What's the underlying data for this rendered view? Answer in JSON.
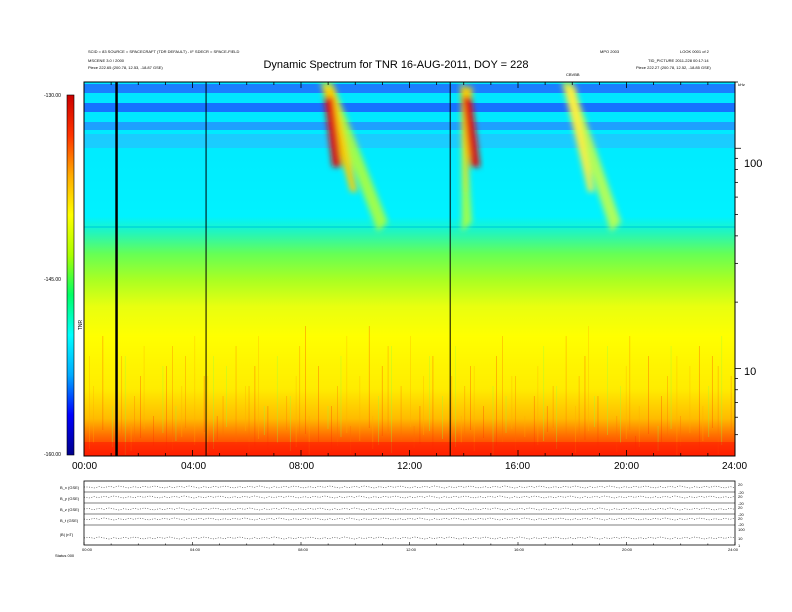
{
  "header": {
    "left_line1": "SCID = 83 SOURCE = SPACECRAFT (TDR DEFAULT)  -  IF SDECR = SPACE-FIELD",
    "left_line2": "MSCENE 3.0 / 2000",
    "left_line3_label": "Piece",
    "left_line3_value": "222.65 (200.78, 12.53, -18.87 GSE)",
    "right_line1_left": "MPO 2003",
    "right_line1_right": "LOOK 0001 of 2",
    "right_line2": "TID_PICTURE  2011-228 00:17:14",
    "right_line3_label": "Piece",
    "right_line3_value": "222.27 (200.78, 12.52, -18.85 GSE)",
    "small_marker": "CBVBB",
    "unit_tag": "kHz"
  },
  "chart_data": {
    "type": "heatmap",
    "title": "Dynamic Spectrum for TNR 16-AUG-2011, DOY = 228",
    "xlabel": "",
    "ylabel": "",
    "x_range_hours": [
      0,
      24
    ],
    "x_tick_labels": [
      "00:00",
      "04:00",
      "08:00",
      "12:00",
      "16:00",
      "20:00",
      "24:00"
    ],
    "y_scale": "log",
    "y_range_khz": [
      4,
      200
    ],
    "y_tick_labels": [
      "100",
      "10"
    ],
    "colorbar": {
      "label": "TNR",
      "range": [
        -160,
        -130
      ],
      "tick_labels": [
        "-130.00",
        "-145.00",
        "-160.00"
      ],
      "colors": [
        "#00008b",
        "#0000ff",
        "#00aaff",
        "#00ffff",
        "#00ff66",
        "#aaff00",
        "#ffff00",
        "#ffaa00",
        "#ff3300",
        "#cc0000"
      ]
    },
    "vertical_markers_hours": [
      1.2,
      4.5,
      13.5
    ],
    "radio_bursts": [
      {
        "start_hour": 8.7,
        "end_hour": 11.2,
        "peak_hour": 9.0,
        "intensity": "strong"
      },
      {
        "start_hour": 13.9,
        "end_hour": 14.3,
        "peak_hour": 14.1,
        "intensity": "strong"
      },
      {
        "start_hour": 17.6,
        "end_hour": 19.8,
        "peak_hour": 17.9,
        "intensity": "moderate"
      }
    ],
    "lower_panels": {
      "row_labels": [
        "B_x (GSE)",
        "B_y (GSE)",
        "B_z (GSE)",
        "B_t (GSE)",
        "|B| (nT)"
      ],
      "right_tick_labels": [
        [
          "20",
          "-20"
        ],
        [
          "20",
          "-20"
        ],
        [
          "20",
          "-20"
        ],
        [
          "20",
          "-20"
        ],
        [
          "100",
          "10",
          "1"
        ]
      ],
      "x_tick_labels": [
        "00:00",
        "04:00",
        "08:00",
        "12:00",
        "16:00",
        "20:00",
        "24:00"
      ],
      "footer_label": "Status",
      "footer_value": "000"
    }
  }
}
